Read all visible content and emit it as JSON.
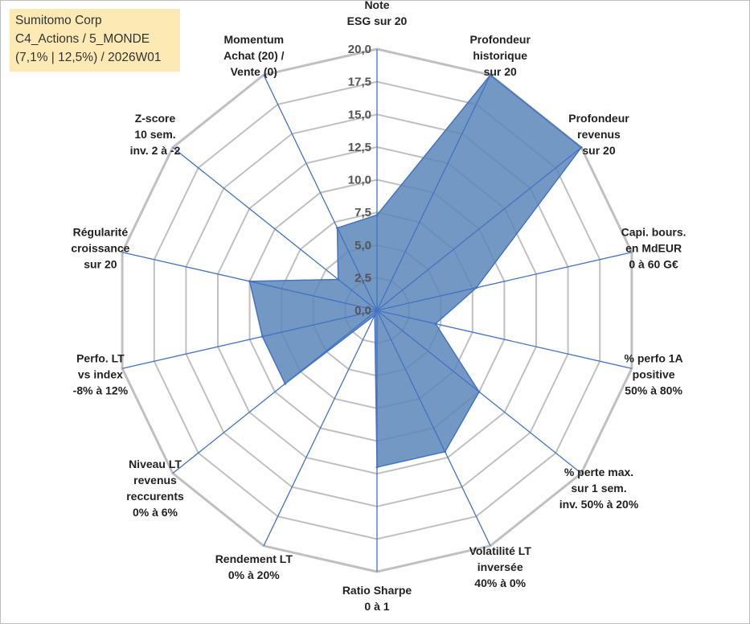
{
  "info": {
    "line1": "Sumitomo Corp",
    "line2": "C4_Actions / 5_MONDE",
    "line3": "(7,1% | 12,5%) / 2026W01"
  },
  "chart_data": {
    "type": "radar",
    "title": "",
    "rmin": 0,
    "rmax": 20,
    "ticks": [
      "0,0",
      "2,5",
      "5,0",
      "7,5",
      "10,0",
      "12,5",
      "15,0",
      "17,5",
      "20,0"
    ],
    "colors": {
      "fill": "#5b86b8",
      "line": "#4472c4",
      "grid": "#c0c0c0",
      "spoke": "#4472c4"
    },
    "axes": [
      {
        "lines": [
          "Note",
          "ESG sur 20"
        ],
        "value": 7.3
      },
      {
        "lines": [
          "Profondeur",
          "historique",
          "sur 20"
        ],
        "value": 20.0
      },
      {
        "lines": [
          "Profondeur",
          "revenus",
          "sur 20"
        ],
        "value": 20.0
      },
      {
        "lines": [
          "Capi. bours.",
          "en MdEUR",
          "0 à 60 G€"
        ],
        "value": 7.8
      },
      {
        "lines": [
          "% perfo 1A",
          "positive",
          "50% à 80%"
        ],
        "value": 4.6
      },
      {
        "lines": [
          "% perte max.",
          "sur 1 sem.",
          "inv. 50% à 20%"
        ],
        "value": 10.0
      },
      {
        "lines": [
          "Volatilité LT",
          "inversée",
          "40% à 0%"
        ],
        "value": 12.0
      },
      {
        "lines": [
          "Ratio Sharpe",
          "0 à 1"
        ],
        "value": 12.0
      },
      {
        "lines": [
          "Rendement LT",
          "0% à 20%"
        ],
        "value": 0.4
      },
      {
        "lines": [
          "Niveau LT",
          "revenus",
          "reccurents",
          "0% à 6%"
        ],
        "value": 9.0
      },
      {
        "lines": [
          "Perfo. LT",
          "vs index",
          "-8% à 12%"
        ],
        "value": 9.0
      },
      {
        "lines": [
          "Régularité",
          "croissance",
          "sur 20"
        ],
        "value": 10.0
      },
      {
        "lines": [
          "Z-score",
          "10 sem.",
          "inv. 2 à -2"
        ],
        "value": 3.8
      },
      {
        "lines": [
          "Momentum",
          "Achat (20) /",
          "Vente (0)"
        ],
        "value": 7.0
      }
    ]
  }
}
